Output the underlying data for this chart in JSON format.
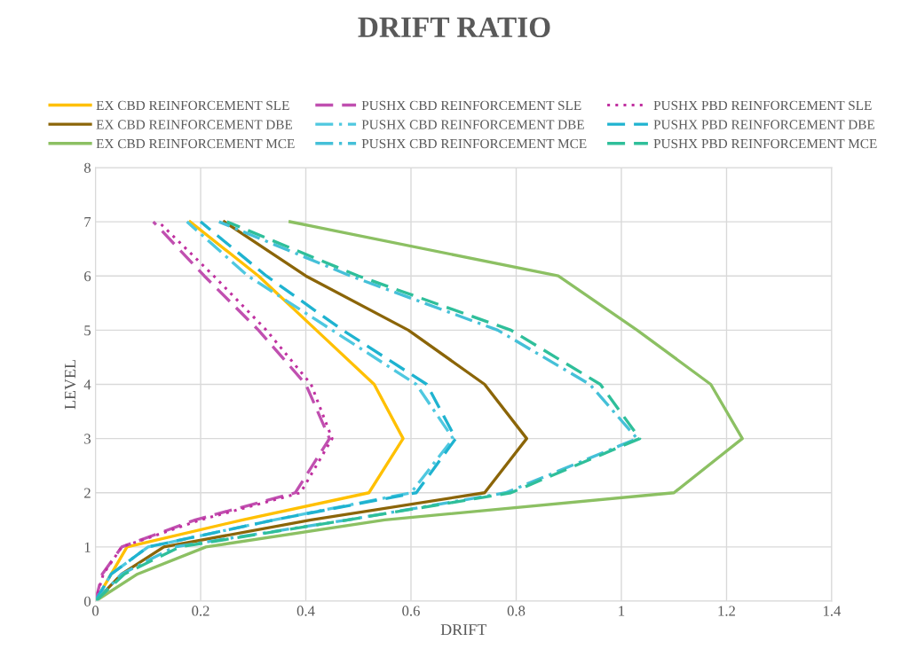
{
  "chart_data": {
    "type": "line",
    "title": "DRIFT RATIO",
    "xlabel": "DRIFT",
    "ylabel": "LEVEL",
    "xlim": [
      0,
      1.4
    ],
    "ylim": [
      0,
      8
    ],
    "xticks": [
      0,
      0.2,
      0.4,
      0.6,
      0.8,
      1,
      1.2,
      1.4
    ],
    "yticks": [
      0,
      1,
      2,
      3,
      4,
      5,
      6,
      7,
      8
    ],
    "grid": true,
    "legend": "top",
    "marker": "none",
    "series": [
      {
        "name": "EX CBD REINFORCEMENT SLE",
        "color": "#ffc000",
        "line_style": "solid",
        "x": [
          0,
          0.03,
          0.06,
          0.28,
          0.52,
          0.585,
          0.53,
          0.42,
          0.31,
          0.18
        ],
        "values": [
          0,
          0.5,
          1,
          1.5,
          2,
          3,
          4,
          5,
          6,
          7
        ]
      },
      {
        "name": "PUSHX CBD REINFORCEMENT SLE",
        "color": "#c050b0",
        "line_style": "dashed",
        "x": [
          0,
          0.013,
          0.05,
          0.19,
          0.38,
          0.445,
          0.4,
          0.31,
          0.207,
          0.11
        ],
        "values": [
          0,
          0.5,
          1,
          1.5,
          2,
          3,
          4,
          5,
          6,
          7
        ]
      },
      {
        "name": "PUSHX PBD REINFORCEMENT SLE",
        "color": "#c030a0",
        "line_style": "dotted",
        "x": [
          0,
          0.015,
          0.05,
          0.2,
          0.39,
          0.45,
          0.41,
          0.325,
          0.225,
          0.12
        ],
        "values": [
          0,
          0.5,
          1,
          1.5,
          2,
          3,
          4,
          5,
          6,
          7
        ]
      },
      {
        "name": "EX CBD REINFORCEMENT DBE",
        "color": "#8b6508",
        "line_style": "solid",
        "x": [
          0,
          0.05,
          0.13,
          0.41,
          0.74,
          0.82,
          0.74,
          0.595,
          0.4,
          0.245
        ],
        "values": [
          0,
          0.5,
          1,
          1.5,
          2,
          3,
          4,
          5,
          6,
          7
        ]
      },
      {
        "name": "PUSHX CBD REINFORCEMENT DBE",
        "color": "#4fc8e0",
        "line_style": "dashdot",
        "x": [
          0,
          0.03,
          0.1,
          0.34,
          0.6,
          0.68,
          0.61,
          0.45,
          0.29,
          0.174
        ],
        "values": [
          0,
          0.5,
          1,
          1.5,
          2,
          3,
          4,
          5,
          6,
          7
        ]
      },
      {
        "name": "PUSHX PBD REINFORCEMENT DBE",
        "color": "#1fb3d0",
        "line_style": "dashed",
        "x": [
          0,
          0.03,
          0.1,
          0.34,
          0.61,
          0.685,
          0.63,
          0.47,
          0.325,
          0.2
        ],
        "values": [
          0,
          0.5,
          1,
          1.5,
          2,
          3,
          4,
          5,
          6,
          7
        ]
      },
      {
        "name": "EX CBD REINFORCEMENT MCE",
        "color": "#8cc063",
        "line_style": "solid",
        "x": [
          0,
          0.08,
          0.21,
          0.55,
          1.1,
          1.23,
          1.17,
          1.03,
          0.88,
          0.37
        ],
        "values": [
          0,
          0.5,
          1,
          1.5,
          2,
          3,
          4,
          5,
          6,
          7
        ]
      },
      {
        "name": "PUSHX CBD REINFORCEMENT MCE",
        "color": "#45c0d8",
        "line_style": "dashdot",
        "x": [
          0,
          0.05,
          0.15,
          0.48,
          0.78,
          1.03,
          0.94,
          0.765,
          0.485,
          0.235
        ],
        "values": [
          0,
          0.5,
          1,
          1.5,
          2,
          3,
          4,
          5,
          6,
          7
        ]
      },
      {
        "name": "PUSHX PBD REINFORCEMENT MCE",
        "color": "#2fbf9a",
        "line_style": "dashed",
        "x": [
          0,
          0.055,
          0.16,
          0.48,
          0.79,
          1.035,
          0.96,
          0.79,
          0.5,
          0.25
        ],
        "values": [
          0,
          0.5,
          1,
          1.5,
          2,
          3,
          4,
          5,
          6,
          7
        ]
      }
    ]
  }
}
